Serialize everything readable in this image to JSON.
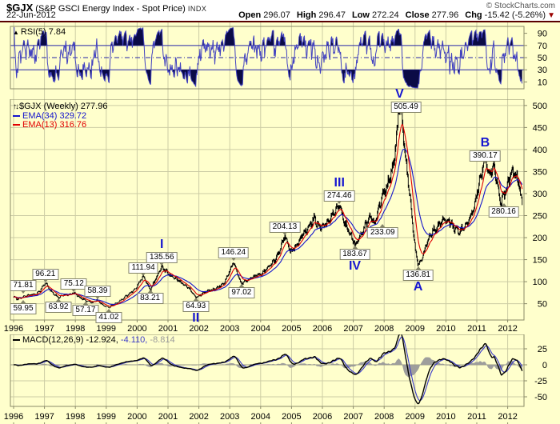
{
  "header": {
    "symbol": "$GJX",
    "name": " (S&P GSCI Energy Index - Spot Price) ",
    "exchange": "INDX",
    "copyright": "© StockCharts.com",
    "date": "22-Jun-2012",
    "quote": {
      "open_label": "Open",
      "open": "296.07",
      "high_label": "High",
      "high": "296.47",
      "low_label": "Low",
      "low": "272.24",
      "close_label": "Close",
      "close": "277.96",
      "chg_label": "Chg",
      "chg": "-15.42 (-5.26%)",
      "arrow": "▼"
    }
  },
  "icons": {
    "area_chart": "▲",
    "updown_arrows": "↑↓"
  },
  "rsi_panel": {
    "legend": "RSI(5) 7.84"
  },
  "main_panel": {
    "legend_symbol": "$GJX (Weekly) 277.96",
    "legend_ema34": "EMA(34) 329.72",
    "legend_ema13": "EMA(13) 316.76"
  },
  "macd_panel": {
    "legend_name": "MACD(12,26,9)",
    "macd_value": " -12.924,",
    "signal_value": " -4.110,",
    "hist_value": " -8.814"
  },
  "colors": {
    "background": "#ffffcc",
    "grid": "#cccca4",
    "panel_border": "#8b8b69",
    "candle": "#000000",
    "ema34": "#1414cc",
    "ema13": "#e00000",
    "rsi_line": "#4242c0",
    "rsi_fill": "#0b0b46",
    "rsi_levels": "#2525a8",
    "macd_line": "#000000",
    "macd_signal": "#3a3ac8",
    "macd_hist": "#999999",
    "wave_label": "#1616d0",
    "axis_text": "#000000"
  },
  "x_axis": {
    "years": [
      1996,
      1997,
      1998,
      1999,
      2000,
      2001,
      2002,
      2003,
      2004,
      2005,
      2006,
      2007,
      2008,
      2009,
      2010,
      2011,
      2012
    ]
  },
  "chart_data": [
    {
      "type": "line",
      "panel": "rsi",
      "title": "RSI(5)",
      "last_value": 7.84,
      "ylim": [
        0,
        100
      ],
      "yticks": [
        90,
        70,
        50,
        30,
        10
      ],
      "overbought": 70,
      "midline": 50,
      "oversold": 30,
      "derived_from": "price_keypoints"
    },
    {
      "type": "candlestick",
      "panel": "price",
      "title": "$GJX S&P GSCI Energy Index - Spot Price (Weekly)",
      "x_range_years": [
        1996.0,
        2012.47
      ],
      "ylim": [
        13,
        520
      ],
      "yticks": [
        500,
        450,
        400,
        350,
        300,
        250,
        200,
        150,
        100,
        50
      ],
      "last_close": 277.96,
      "ema_overlays": [
        {
          "period": 34,
          "last": 329.72
        },
        {
          "period": 13,
          "last": 316.76
        }
      ],
      "price_keypoints": [
        [
          1996.0,
          64
        ],
        [
          1996.12,
          59.95
        ],
        [
          1996.3,
          66
        ],
        [
          1996.5,
          69
        ],
        [
          1996.75,
          72
        ],
        [
          1997.03,
          96.21
        ],
        [
          1997.2,
          80
        ],
        [
          1997.45,
          63.92
        ],
        [
          1997.7,
          70
        ],
        [
          1997.95,
          75.12
        ],
        [
          1998.15,
          63
        ],
        [
          1998.35,
          57.17
        ],
        [
          1998.55,
          52
        ],
        [
          1998.7,
          58.39
        ],
        [
          1998.9,
          47
        ],
        [
          1999.08,
          41.02
        ],
        [
          1999.4,
          55
        ],
        [
          1999.75,
          72
        ],
        [
          2000.0,
          90
        ],
        [
          2000.2,
          111.94
        ],
        [
          2000.42,
          83.21
        ],
        [
          2000.6,
          105
        ],
        [
          2000.8,
          135.56
        ],
        [
          2001.1,
          112
        ],
        [
          2001.45,
          98
        ],
        [
          2001.7,
          82
        ],
        [
          2001.9,
          64.93
        ],
        [
          2002.2,
          76
        ],
        [
          2002.5,
          84
        ],
        [
          2002.8,
          94
        ],
        [
          2003.12,
          146.24
        ],
        [
          2003.35,
          97.02
        ],
        [
          2003.6,
          104
        ],
        [
          2003.9,
          114
        ],
        [
          2004.2,
          128
        ],
        [
          2004.5,
          152
        ],
        [
          2004.78,
          204.13
        ],
        [
          2004.95,
          168
        ],
        [
          2005.2,
          188
        ],
        [
          2005.5,
          218
        ],
        [
          2005.72,
          246
        ],
        [
          2005.9,
          218
        ],
        [
          2006.1,
          232
        ],
        [
          2006.3,
          248
        ],
        [
          2006.55,
          274.46
        ],
        [
          2006.75,
          228
        ],
        [
          2007.05,
          183.67
        ],
        [
          2007.35,
          222
        ],
        [
          2007.55,
          248
        ],
        [
          2007.68,
          233.09
        ],
        [
          2007.9,
          285
        ],
        [
          2008.1,
          320
        ],
        [
          2008.3,
          370
        ],
        [
          2008.42,
          440
        ],
        [
          2008.5,
          505.49
        ],
        [
          2008.58,
          460
        ],
        [
          2008.7,
          380
        ],
        [
          2008.85,
          280
        ],
        [
          2009.0,
          175
        ],
        [
          2009.1,
          136.81
        ],
        [
          2009.25,
          160
        ],
        [
          2009.45,
          200
        ],
        [
          2009.7,
          225
        ],
        [
          2009.95,
          240
        ],
        [
          2010.15,
          232
        ],
        [
          2010.45,
          212
        ],
        [
          2010.7,
          234
        ],
        [
          2010.9,
          268
        ],
        [
          2011.1,
          325
        ],
        [
          2011.27,
          390.17
        ],
        [
          2011.4,
          345
        ],
        [
          2011.55,
          358
        ],
        [
          2011.77,
          280.16
        ],
        [
          2011.95,
          312
        ],
        [
          2012.1,
          338
        ],
        [
          2012.22,
          352
        ],
        [
          2012.33,
          332
        ],
        [
          2012.42,
          300
        ],
        [
          2012.47,
          277.96
        ]
      ],
      "callouts": [
        {
          "label": "71.81",
          "year": 1996.07,
          "price": 71.81,
          "place": "above"
        },
        {
          "label": "59.95",
          "year": 1996.12,
          "price": 59.95,
          "place": "below"
        },
        {
          "label": "96.21",
          "year": 1997.03,
          "price": 96.21,
          "place": "above"
        },
        {
          "label": "63.92",
          "year": 1997.45,
          "price": 63.92,
          "place": "below"
        },
        {
          "label": "75.12",
          "year": 1997.95,
          "price": 75.12,
          "place": "above"
        },
        {
          "label": "57.17",
          "year": 1998.33,
          "price": 57.17,
          "place": "below"
        },
        {
          "label": "58.39",
          "year": 1998.72,
          "price": 58.39,
          "place": "above"
        },
        {
          "label": "41.02",
          "year": 1999.08,
          "price": 41.02,
          "place": "below"
        },
        {
          "label": "111.94",
          "year": 2000.2,
          "price": 111.94,
          "place": "above"
        },
        {
          "label": "83.21",
          "year": 2000.42,
          "price": 83.21,
          "place": "below"
        },
        {
          "label": "135.56",
          "year": 2000.8,
          "price": 135.56,
          "place": "above"
        },
        {
          "label": "64.93",
          "year": 2001.9,
          "price": 64.93,
          "place": "below"
        },
        {
          "label": "146.24",
          "year": 2003.12,
          "price": 146.24,
          "place": "above"
        },
        {
          "label": "97.02",
          "year": 2003.38,
          "price": 97.02,
          "place": "below"
        },
        {
          "label": "204.13",
          "year": 2004.78,
          "price": 204.13,
          "place": "above"
        },
        {
          "label": "274.46",
          "year": 2006.55,
          "price": 274.46,
          "place": "above"
        },
        {
          "label": "183.67",
          "year": 2007.05,
          "price": 183.67,
          "place": "below"
        },
        {
          "label": "233.09",
          "year": 2007.95,
          "price": 233.09,
          "place": "below"
        },
        {
          "label": "505.49",
          "year": 2008.5,
          "price": 505.49,
          "place": "above",
          "dx": 8,
          "dy": 16
        },
        {
          "label": "136.81",
          "year": 2009.1,
          "price": 136.81,
          "place": "below"
        },
        {
          "label": "390.17",
          "year": 2011.27,
          "price": 390.17,
          "place": "above",
          "dy": 14
        },
        {
          "label": "280.16",
          "year": 2011.87,
          "price": 280.16,
          "place": "below"
        }
      ],
      "elliott_waves": [
        {
          "label": "I",
          "year": 2000.8,
          "price": 135.56,
          "place": "above"
        },
        {
          "label": "II",
          "year": 2001.9,
          "price": 64.93,
          "place": "below"
        },
        {
          "label": "III",
          "year": 2006.55,
          "price": 274.46,
          "place": "above"
        },
        {
          "label": "IV",
          "year": 2007.05,
          "price": 183.67,
          "place": "below"
        },
        {
          "label": "V",
          "year": 2008.5,
          "price": 505.49,
          "place": "above",
          "dy": 16
        },
        {
          "label": "A",
          "year": 2009.1,
          "price": 136.81,
          "place": "below"
        },
        {
          "label": "B",
          "year": 2011.27,
          "price": 390.17,
          "place": "above",
          "dy": 14
        }
      ]
    },
    {
      "type": "line",
      "panel": "macd",
      "title": "MACD(12,26,9)",
      "last_macd": -12.924,
      "last_signal": -4.11,
      "last_hist": -8.814,
      "ylim": [
        -70,
        40
      ],
      "yticks": [
        25,
        0,
        -25,
        -50
      ],
      "derived_from": "price_keypoints"
    }
  ]
}
